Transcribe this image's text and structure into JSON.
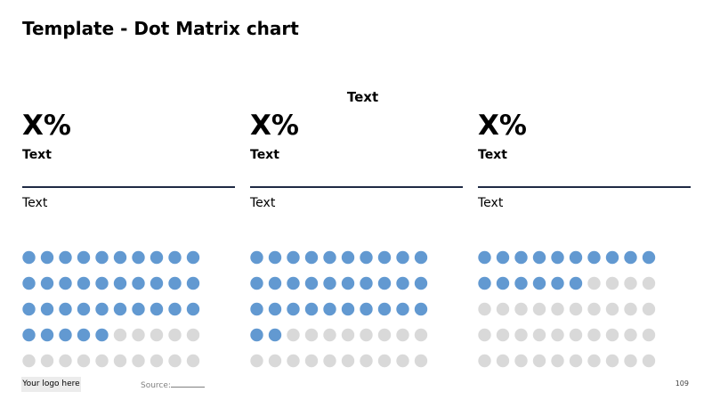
{
  "title": "Template - Dot Matrix chart",
  "center_label": "Text",
  "panels": [
    {
      "value_label": "X%",
      "sub_label": "Text",
      "description": "Text"
    },
    {
      "value_label": "X%",
      "sub_label": "Text",
      "description": "Text"
    },
    {
      "value_label": "X%",
      "sub_label": "Text",
      "description": "Text"
    }
  ],
  "footer": {
    "logo": "Your logo here",
    "source": "Source:",
    "page_number": "109"
  },
  "colors": {
    "filled": "#6299d1",
    "empty": "#d9d9d9",
    "rule": "#1f2a44"
  },
  "chart_data": [
    {
      "type": "dot-matrix",
      "rows": 5,
      "columns": 10,
      "total": 50,
      "filled": 35
    },
    {
      "type": "dot-matrix",
      "rows": 5,
      "columns": 10,
      "total": 50,
      "filled": 32
    },
    {
      "type": "dot-matrix",
      "rows": 5,
      "columns": 10,
      "total": 50,
      "filled": 16
    }
  ]
}
